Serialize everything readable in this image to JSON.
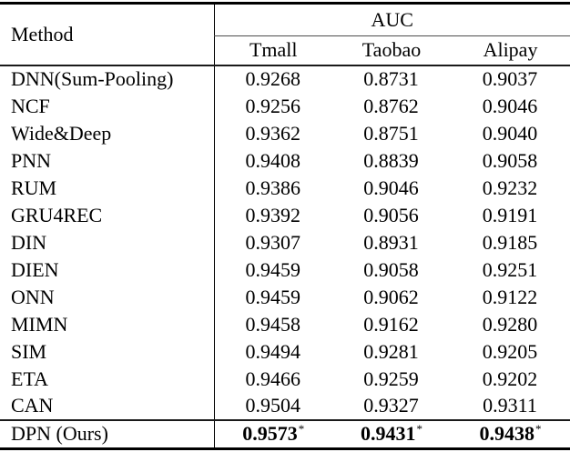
{
  "table": {
    "header": {
      "method_label": "Method",
      "group_label": "AUC",
      "columns": [
        "Tmall",
        "Taobao",
        "Alipay"
      ]
    },
    "rows": [
      {
        "method": "DNN(Sum-Pooling)",
        "values": [
          "0.9268",
          "0.8731",
          "0.9037"
        ],
        "bold": false,
        "sup": ""
      },
      {
        "method": "NCF",
        "values": [
          "0.9256",
          "0.8762",
          "0.9046"
        ],
        "bold": false,
        "sup": ""
      },
      {
        "method": "Wide&Deep",
        "values": [
          "0.9362",
          "0.8751",
          "0.9040"
        ],
        "bold": false,
        "sup": ""
      },
      {
        "method": "PNN",
        "values": [
          "0.9408",
          "0.8839",
          "0.9058"
        ],
        "bold": false,
        "sup": ""
      },
      {
        "method": "RUM",
        "values": [
          "0.9386",
          "0.9046",
          "0.9232"
        ],
        "bold": false,
        "sup": ""
      },
      {
        "method": "GRU4REC",
        "values": [
          "0.9392",
          "0.9056",
          "0.9191"
        ],
        "bold": false,
        "sup": ""
      },
      {
        "method": "DIN",
        "values": [
          "0.9307",
          "0.8931",
          "0.9185"
        ],
        "bold": false,
        "sup": ""
      },
      {
        "method": "DIEN",
        "values": [
          "0.9459",
          "0.9058",
          "0.9251"
        ],
        "bold": false,
        "sup": ""
      },
      {
        "method": "ONN",
        "values": [
          "0.9459",
          "0.9062",
          "0.9122"
        ],
        "bold": false,
        "sup": ""
      },
      {
        "method": "MIMN",
        "values": [
          "0.9458",
          "0.9162",
          "0.9280"
        ],
        "bold": false,
        "sup": ""
      },
      {
        "method": "SIM",
        "values": [
          "0.9494",
          "0.9281",
          "0.9205"
        ],
        "bold": false,
        "sup": ""
      },
      {
        "method": "ETA",
        "values": [
          "0.9466",
          "0.9259",
          "0.9202"
        ],
        "bold": false,
        "sup": ""
      },
      {
        "method": "CAN",
        "values": [
          "0.9504",
          "0.9327",
          "0.9311"
        ],
        "bold": false,
        "sup": ""
      },
      {
        "method": "DPN (Ours)",
        "values": [
          "0.9573",
          "0.9431",
          "0.9438"
        ],
        "bold": true,
        "sup": "*",
        "separator_above": true
      }
    ]
  },
  "colors": {
    "background": "#ffffff",
    "text": "#000000",
    "rule_heavy": "#000000",
    "rule_mid": "#1a1a1a",
    "rule_light": "#4d4d4d",
    "vertical_divider": "#000000"
  }
}
